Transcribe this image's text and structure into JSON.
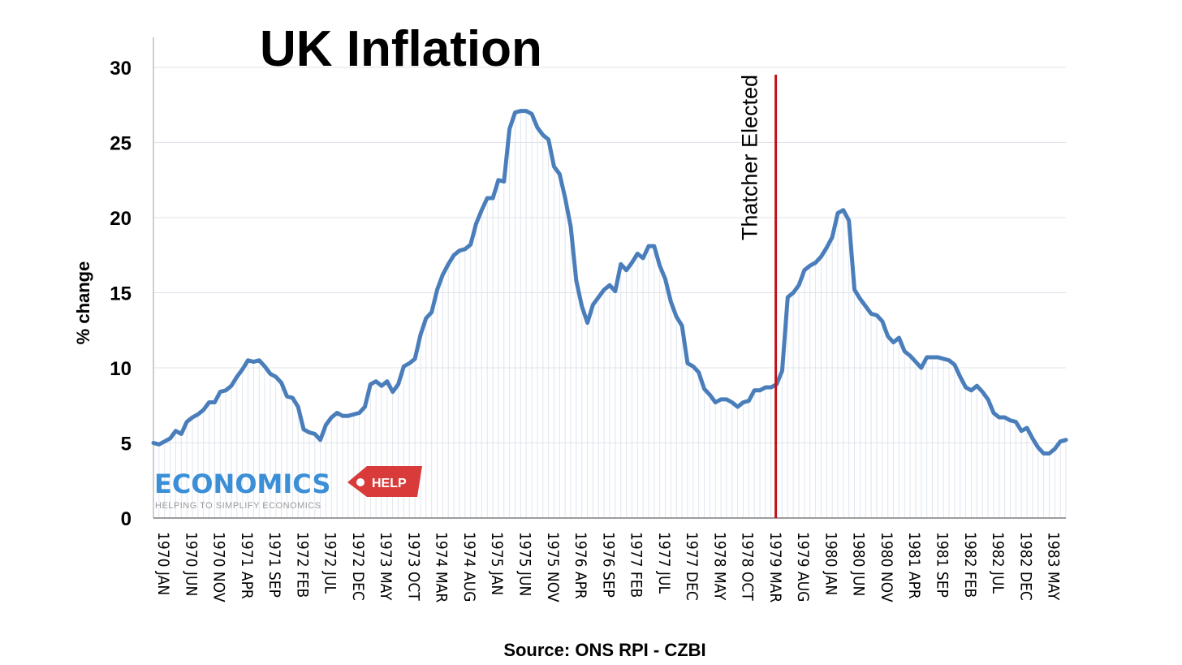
{
  "chart_data": {
    "type": "line",
    "title": "UK Inflation",
    "ylabel": "% change",
    "xlabel": "",
    "ylim": [
      0,
      30
    ],
    "yticks": [
      0,
      5,
      10,
      15,
      20,
      25,
      30
    ],
    "grid": true,
    "x_tick_labels": [
      "1970 JAN",
      "1970 JUN",
      "1970 NOV",
      "1971 APR",
      "1971 SEP",
      "1972 FEB",
      "1972 JUL",
      "1972 DEC",
      "1973 MAY",
      "1973 OCT",
      "1974 MAR",
      "1974 AUG",
      "1975 JAN",
      "1975 JUN",
      "1975 NOV",
      "1976 APR",
      "1976 SEP",
      "1977 FEB",
      "1977 JUL",
      "1977 DEC",
      "1978 MAY",
      "1978 OCT",
      "1979 MAR",
      "1979 AUG",
      "1980 JAN",
      "1980 JUN",
      "1980 NOV",
      "1981 APR",
      "1981 SEP",
      "1982 FEB",
      "1982 JUL",
      "1982 DEC",
      "1983 MAY"
    ],
    "x_start": "1970 JAN",
    "x_interval": "monthly",
    "series": [
      {
        "color": "#4a7ebb",
        "values": [
          5.0,
          4.9,
          5.1,
          5.3,
          5.8,
          5.6,
          6.4,
          6.7,
          6.9,
          7.2,
          7.7,
          7.7,
          8.4,
          8.5,
          8.8,
          9.4,
          9.9,
          10.5,
          10.4,
          10.5,
          10.1,
          9.6,
          9.4,
          9.0,
          8.1,
          8.0,
          7.4,
          5.9,
          5.7,
          5.6,
          5.2,
          6.2,
          6.7,
          7.0,
          6.8,
          6.8,
          6.9,
          7.0,
          7.4,
          8.9,
          9.1,
          8.8,
          9.1,
          8.4,
          8.9,
          10.1,
          10.3,
          10.6,
          12.2,
          13.3,
          13.7,
          15.2,
          16.2,
          16.9,
          17.5,
          17.8,
          17.9,
          18.2,
          19.6,
          20.5,
          21.3,
          21.3,
          22.5,
          22.4,
          25.9,
          27.0,
          27.1,
          27.1,
          26.9,
          26.0,
          25.5,
          25.2,
          23.4,
          22.9,
          21.3,
          19.4,
          15.8,
          14.1,
          13.0,
          14.2,
          14.7,
          15.2,
          15.5,
          15.1,
          16.9,
          16.5,
          17.0,
          17.6,
          17.3,
          18.1,
          18.1,
          16.8,
          15.9,
          14.4,
          13.4,
          12.8,
          10.3,
          10.1,
          9.7,
          8.6,
          8.2,
          7.7,
          7.9,
          7.9,
          7.7,
          7.4,
          7.7,
          7.8,
          8.5,
          8.5,
          8.7,
          8.7,
          8.9,
          9.8,
          14.7,
          15.0,
          15.5,
          16.5,
          16.8,
          17.0,
          17.4,
          18.0,
          18.7,
          20.3,
          20.5,
          19.8,
          15.2,
          14.6,
          14.1,
          13.6,
          13.5,
          13.1,
          12.1,
          11.7,
          12.0,
          11.1,
          10.8,
          10.4,
          10.0,
          10.7,
          10.7,
          10.7,
          10.6,
          10.5,
          10.2,
          9.4,
          8.7,
          8.5,
          8.8,
          8.4,
          7.9,
          7.0,
          6.7,
          6.7,
          6.5,
          6.4,
          5.8,
          6.0,
          5.3,
          4.7,
          4.3,
          4.3,
          4.6,
          5.1,
          5.2
        ]
      }
    ],
    "annotations": [
      {
        "text": "Thatcher Elected",
        "x": "1979 MAY",
        "color": "#c0121a"
      }
    ],
    "source": "Source: ONS RPI - CZBI"
  },
  "logo": {
    "main": "ECONOMICS",
    "tag": "HELP",
    "sub": "HELPING TO SIMPLIFY ECONOMICS",
    "main_color": "#3b8fd6",
    "tag_color": "#d93b3b"
  }
}
